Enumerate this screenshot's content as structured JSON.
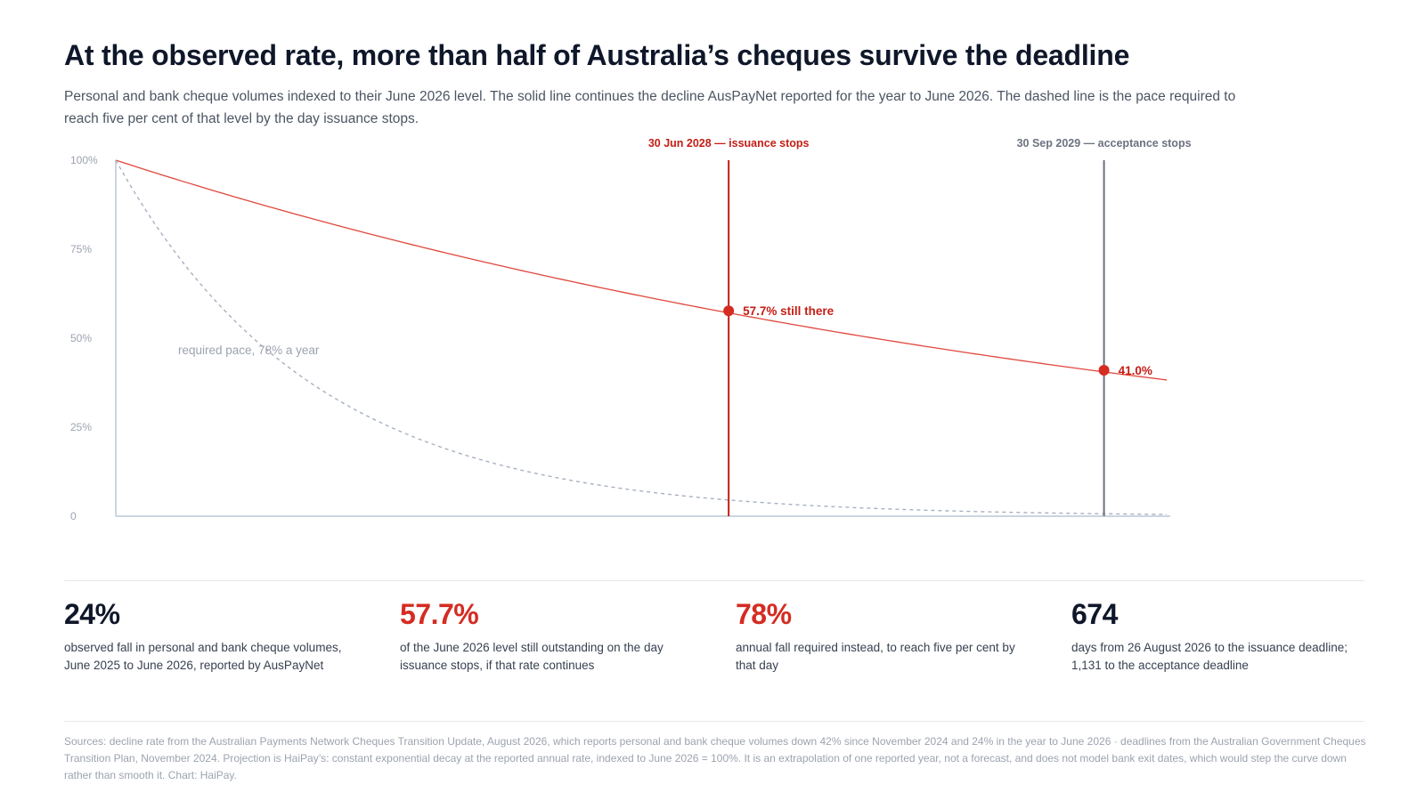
{
  "title": "At the observed rate, more than half of Australia’s cheques survive the deadline",
  "subtitle": "Personal and bank cheque volumes indexed to their June 2026 level. The solid line continues the decline AusPayNet reported for the year to June 2026. The dashed line is the pace required to reach five per cent of that level by the day issuance stops.",
  "chart_data": {
    "type": "line",
    "x_unit": "date",
    "x_start": "Jun 2026",
    "x_end": "Dec 2029",
    "ylim": [
      0,
      100
    ],
    "y_ticks": [
      {
        "value": 100,
        "label": "100%"
      },
      {
        "value": 75,
        "label": "75%"
      },
      {
        "value": 50,
        "label": "50%"
      },
      {
        "value": 25,
        "label": "25%"
      },
      {
        "value": 0,
        "label": "0"
      }
    ],
    "series": [
      {
        "style": "solid",
        "color": "#e0473c",
        "annual_fall_pct": 24,
        "x": [
          "Jun 2026",
          "Dec 2026",
          "Jun 2027",
          "Dec 2027",
          "Jun 2028",
          "Dec 2028",
          "Jun 2029",
          "Sep 2029",
          "Dec 2029"
        ],
        "values": [
          100,
          87.2,
          76.0,
          66.2,
          57.7,
          50.3,
          43.9,
          41.0,
          38.3
        ]
      },
      {
        "style": "dashed",
        "color": "#a7b0c0",
        "annual_fall_pct": 78,
        "label": "required pace, 78% a year",
        "x": [
          "Jun 2026",
          "Dec 2026",
          "Jun 2027",
          "Dec 2027",
          "Jun 2028",
          "Dec 2028",
          "Jun 2029",
          "Sep 2029",
          "Dec 2029"
        ],
        "values": [
          100,
          46.9,
          22.0,
          10.3,
          5.0,
          2.3,
          1.1,
          0.7,
          0.5
        ]
      }
    ],
    "markers": [
      {
        "date": "30 Jun 2028",
        "label": "30 Jun 2028 — issuance stops",
        "color": "#c41e16"
      },
      {
        "date": "30 Sep 2029",
        "label": "30 Sep 2029 — acceptance stops",
        "color": "#6b7280"
      }
    ],
    "points": [
      {
        "date": "30 Jun 2028",
        "value": 57.7,
        "label": "57.7% still there"
      },
      {
        "date": "30 Sep 2029",
        "value": 41.0,
        "label": "41.0%"
      }
    ]
  },
  "stats": [
    {
      "value": "24%",
      "desc": "observed fall in personal and bank cheque volumes, June 2025 to June 2026, reported by AusPayNet",
      "color": "#0f172a"
    },
    {
      "value": "57.7%",
      "desc": "of the June 2026 level still outstanding on the day issuance stops, if that rate continues",
      "color": "#d42c22"
    },
    {
      "value": "78%",
      "desc": "annual fall required instead, to reach five per cent by that day",
      "color": "#d42c22"
    },
    {
      "value": "674",
      "desc": "days from 26 August 2026 to the issuance deadline; 1,131 to the acceptance deadline",
      "color": "#0f172a"
    }
  ],
  "sources": "Sources: decline rate from the Australian Payments Network Cheques Transition Update, August 2026, which reports personal and bank cheque volumes down 42% since November 2024 and 24% in the year to June 2026 · deadlines from the Australian Government Cheques Transition Plan, November 2024. Projection is HaiPay’s: constant exponential decay at the reported annual rate, indexed to June 2026 = 100%. It is an extrapolation of one reported year, not a forecast, and does not model bank exit dates, which would step the curve down rather than smooth it. Chart: HaiPay."
}
